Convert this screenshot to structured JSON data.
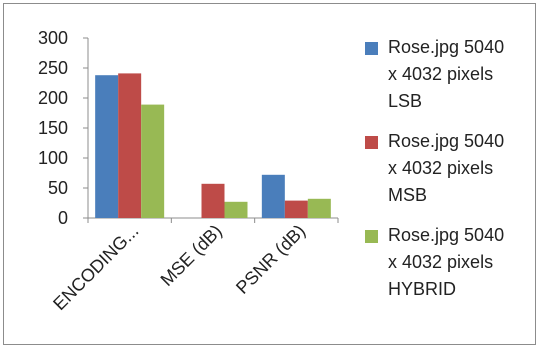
{
  "chart_data": {
    "type": "bar",
    "categories": [
      "ENCODING...",
      "MSE (dB)",
      "PSNR (dB)"
    ],
    "series": [
      {
        "name": "Rose.jpg 5040 x 4032 pixels LSB",
        "color": "#4a7ebb",
        "values": [
          238,
          0,
          72
        ]
      },
      {
        "name": "Rose.jpg 5040 x 4032 pixels MSB",
        "color": "#be4b48",
        "values": [
          241,
          57,
          29
        ]
      },
      {
        "name": "Rose.jpg 5040 x 4032 pixels HYBRID",
        "color": "#98b954",
        "values": [
          189,
          27,
          32
        ]
      }
    ],
    "yticks": [
      "0",
      "50",
      "100",
      "150",
      "200",
      "250",
      "300"
    ],
    "ylim": [
      0,
      300
    ],
    "grid": false,
    "legend_position": "right",
    "legend_lines": [
      [
        "Rose.jpg 5040",
        "x 4032 pixels",
        "LSB"
      ],
      [
        "Rose.jpg 5040",
        "x 4032 pixels",
        "MSB"
      ],
      [
        "Rose.jpg 5040",
        "x 4032 pixels",
        "HYBRID"
      ]
    ]
  }
}
